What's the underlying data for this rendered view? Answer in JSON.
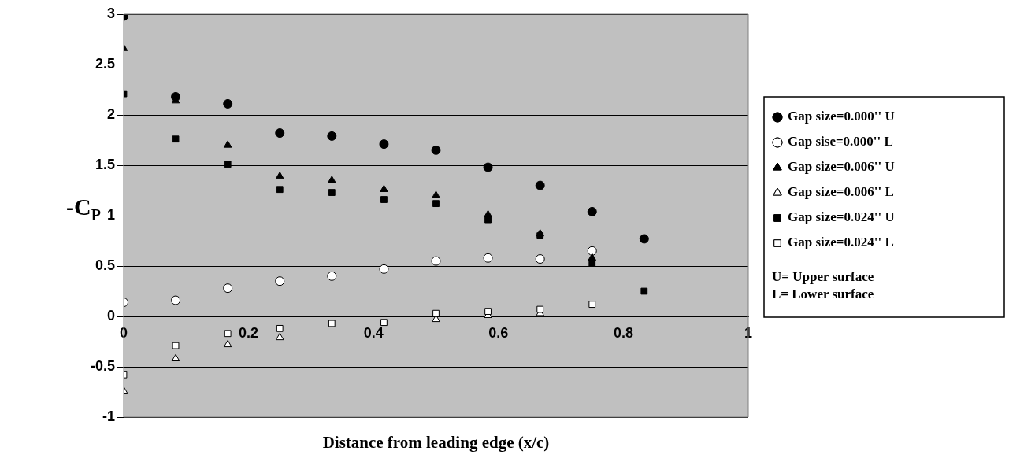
{
  "chart_data": {
    "type": "scatter",
    "xlabel": "Distance from leading edge (x/c)",
    "ylabel": "-C$_{P}$",
    "x": [
      0,
      0.0833,
      0.1667,
      0.25,
      0.3333,
      0.4167,
      0.5,
      0.5833,
      0.6667,
      0.75,
      0.8333
    ],
    "series": [
      {
        "name": "Gap size=0.000'' U",
        "color": "#000000",
        "marker": "circle",
        "values": [
          2.98,
          2.18,
          2.11,
          1.82,
          1.79,
          1.71,
          1.65,
          1.48,
          1.3,
          1.04,
          0.77
        ]
      },
      {
        "name": "Gap sise=0.000'' L",
        "color": "#ffffff",
        "marker": "circle",
        "values": [
          0.14,
          0.16,
          0.28,
          0.35,
          0.4,
          0.47,
          0.55,
          0.58,
          0.57,
          0.65,
          null
        ]
      },
      {
        "name": "Gap size=0.006'' U",
        "color": "#000000",
        "marker": "triangle",
        "values": [
          2.66,
          2.14,
          1.7,
          1.39,
          1.35,
          1.26,
          1.2,
          1.01,
          0.82,
          0.58,
          null
        ]
      },
      {
        "name": "Gap size=0.006'' L",
        "color": "#ffffff",
        "marker": "triangle",
        "values": [
          -0.74,
          -0.42,
          -0.28,
          -0.21,
          null,
          null,
          -0.03,
          0.01,
          0.03,
          null,
          null
        ]
      },
      {
        "name": "Gap size=0.024'' U",
        "color": "#000000",
        "marker": "square",
        "values": [
          2.21,
          1.76,
          1.51,
          1.26,
          1.23,
          1.16,
          1.12,
          0.96,
          0.8,
          0.53,
          0.25
        ]
      },
      {
        "name": "Gap size=0.024'' L",
        "color": "#ffffff",
        "marker": "square",
        "values": [
          -0.58,
          -0.29,
          -0.17,
          -0.12,
          -0.07,
          -0.06,
          0.03,
          0.05,
          0.07,
          0.12,
          null
        ]
      }
    ],
    "xlim": [
      0,
      1
    ],
    "xticks": [
      0,
      0.2,
      0.4,
      0.6,
      0.8,
      1
    ],
    "ylim": [
      -1,
      3
    ],
    "yticks": [
      -1,
      -0.5,
      0,
      0.5,
      1,
      1.5,
      2,
      2.5,
      3
    ],
    "grid": "y",
    "legend": "right",
    "annotations": [
      "U= Upper surface",
      "L= Lower surface"
    ]
  }
}
